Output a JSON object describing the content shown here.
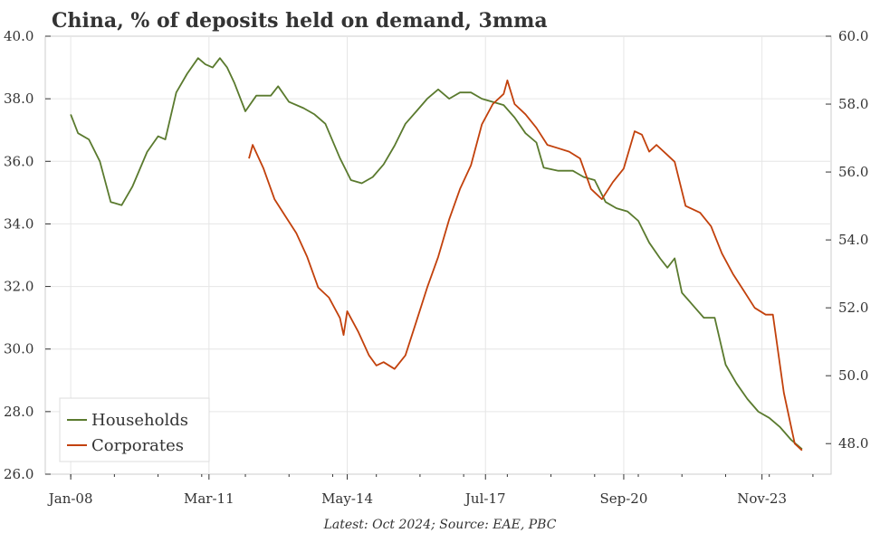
{
  "chart_data": {
    "type": "line",
    "title": "China, % of deposits held on demand, 3mma",
    "source": "Latest: Oct 2024; Source: EAE, PBC",
    "x_axis": {
      "type": "date",
      "ticks": [
        "Jan-08",
        "Mar-11",
        "May-14",
        "Jul-17",
        "Sep-20",
        "Nov-23"
      ],
      "tick_dates": [
        "2008-01",
        "2011-03",
        "2014-05",
        "2017-07",
        "2020-09",
        "2023-11"
      ],
      "range": [
        "2007-06",
        "2025-06"
      ]
    },
    "y_left": {
      "ticks": [
        "26.0",
        "28.0",
        "30.0",
        "32.0",
        "34.0",
        "36.0",
        "38.0",
        "40.0"
      ],
      "range": [
        26,
        40
      ]
    },
    "y_right": {
      "ticks": [
        "48.0",
        "50.0",
        "52.0",
        "54.0",
        "56.0",
        "58.0",
        "60.0"
      ],
      "range": [
        47.1,
        60
      ]
    },
    "grid": true,
    "legend": {
      "position": "bottom-left",
      "items": [
        "Households",
        "Corporates"
      ]
    },
    "colors": {
      "Households": "#5a7a2e",
      "Corporates": "#c2410c"
    },
    "series": [
      {
        "name": "Households",
        "axis": "left",
        "points": [
          [
            "2008-01",
            37.5
          ],
          [
            "2008-03",
            36.9
          ],
          [
            "2008-06",
            36.7
          ],
          [
            "2008-09",
            36.0
          ],
          [
            "2008-12",
            34.7
          ],
          [
            "2009-03",
            34.6
          ],
          [
            "2009-06",
            35.2
          ],
          [
            "2009-10",
            36.3
          ],
          [
            "2010-01",
            36.8
          ],
          [
            "2010-03",
            36.7
          ],
          [
            "2010-06",
            38.2
          ],
          [
            "2010-09",
            38.8
          ],
          [
            "2010-12",
            39.3
          ],
          [
            "2011-02",
            39.1
          ],
          [
            "2011-04",
            39.0
          ],
          [
            "2011-06",
            39.3
          ],
          [
            "2011-08",
            39.0
          ],
          [
            "2011-10",
            38.5
          ],
          [
            "2012-01",
            37.6
          ],
          [
            "2012-04",
            38.1
          ],
          [
            "2012-08",
            38.1
          ],
          [
            "2012-10",
            38.4
          ],
          [
            "2013-01",
            37.9
          ],
          [
            "2013-05",
            37.7
          ],
          [
            "2013-08",
            37.5
          ],
          [
            "2013-11",
            37.2
          ],
          [
            "2014-03",
            36.1
          ],
          [
            "2014-06",
            35.4
          ],
          [
            "2014-09",
            35.3
          ],
          [
            "2014-12",
            35.5
          ],
          [
            "2015-03",
            35.9
          ],
          [
            "2015-06",
            36.5
          ],
          [
            "2015-09",
            37.2
          ],
          [
            "2015-12",
            37.6
          ],
          [
            "2016-03",
            38.0
          ],
          [
            "2016-06",
            38.3
          ],
          [
            "2016-09",
            38.0
          ],
          [
            "2016-12",
            38.2
          ],
          [
            "2017-03",
            38.2
          ],
          [
            "2017-06",
            38.0
          ],
          [
            "2017-09",
            37.9
          ],
          [
            "2017-12",
            37.8
          ],
          [
            "2018-03",
            37.4
          ],
          [
            "2018-06",
            36.9
          ],
          [
            "2018-09",
            36.6
          ],
          [
            "2018-11",
            35.8
          ],
          [
            "2019-03",
            35.7
          ],
          [
            "2019-07",
            35.7
          ],
          [
            "2019-10",
            35.5
          ],
          [
            "2020-01",
            35.4
          ],
          [
            "2020-04",
            34.7
          ],
          [
            "2020-07",
            34.5
          ],
          [
            "2020-10",
            34.4
          ],
          [
            "2021-01",
            34.1
          ],
          [
            "2021-04",
            33.4
          ],
          [
            "2021-07",
            32.9
          ],
          [
            "2021-09",
            32.6
          ],
          [
            "2021-11",
            32.9
          ],
          [
            "2022-01",
            31.8
          ],
          [
            "2022-04",
            31.4
          ],
          [
            "2022-07",
            31.0
          ],
          [
            "2022-10",
            31.0
          ],
          [
            "2023-01",
            29.5
          ],
          [
            "2023-04",
            28.9
          ],
          [
            "2023-07",
            28.4
          ],
          [
            "2023-10",
            28.0
          ],
          [
            "2024-01",
            27.8
          ],
          [
            "2024-04",
            27.5
          ],
          [
            "2024-07",
            27.1
          ],
          [
            "2024-10",
            26.8
          ]
        ]
      },
      {
        "name": "Corporates",
        "axis": "right",
        "points": [
          [
            "2012-02",
            56.4
          ],
          [
            "2012-03",
            56.8
          ],
          [
            "2012-06",
            56.1
          ],
          [
            "2012-09",
            55.2
          ],
          [
            "2012-12",
            54.7
          ],
          [
            "2013-03",
            54.2
          ],
          [
            "2013-06",
            53.5
          ],
          [
            "2013-09",
            52.6
          ],
          [
            "2013-12",
            52.3
          ],
          [
            "2014-03",
            51.7
          ],
          [
            "2014-04",
            51.2
          ],
          [
            "2014-05",
            51.9
          ],
          [
            "2014-08",
            51.3
          ],
          [
            "2014-11",
            50.6
          ],
          [
            "2015-01",
            50.3
          ],
          [
            "2015-03",
            50.4
          ],
          [
            "2015-06",
            50.2
          ],
          [
            "2015-09",
            50.6
          ],
          [
            "2015-12",
            51.6
          ],
          [
            "2016-03",
            52.6
          ],
          [
            "2016-06",
            53.5
          ],
          [
            "2016-09",
            54.6
          ],
          [
            "2016-12",
            55.5
          ],
          [
            "2017-03",
            56.2
          ],
          [
            "2017-06",
            57.4
          ],
          [
            "2017-09",
            58.0
          ],
          [
            "2017-12",
            58.3
          ],
          [
            "2018-01",
            58.7
          ],
          [
            "2018-03",
            58.0
          ],
          [
            "2018-06",
            57.7
          ],
          [
            "2018-09",
            57.3
          ],
          [
            "2018-12",
            56.8
          ],
          [
            "2019-03",
            56.7
          ],
          [
            "2019-06",
            56.6
          ],
          [
            "2019-09",
            56.4
          ],
          [
            "2019-12",
            55.5
          ],
          [
            "2020-03",
            55.2
          ],
          [
            "2020-06",
            55.7
          ],
          [
            "2020-09",
            56.1
          ],
          [
            "2020-12",
            57.2
          ],
          [
            "2021-02",
            57.1
          ],
          [
            "2021-04",
            56.6
          ],
          [
            "2021-06",
            56.8
          ],
          [
            "2021-09",
            56.5
          ],
          [
            "2021-11",
            56.3
          ],
          [
            "2022-02",
            55.0
          ],
          [
            "2022-06",
            54.8
          ],
          [
            "2022-09",
            54.4
          ],
          [
            "2022-12",
            53.6
          ],
          [
            "2023-03",
            53.0
          ],
          [
            "2023-06",
            52.5
          ],
          [
            "2023-09",
            52.0
          ],
          [
            "2023-12",
            51.8
          ],
          [
            "2024-02",
            51.8
          ],
          [
            "2024-05",
            49.5
          ],
          [
            "2024-08",
            48.0
          ],
          [
            "2024-10",
            47.8
          ]
        ]
      }
    ]
  }
}
